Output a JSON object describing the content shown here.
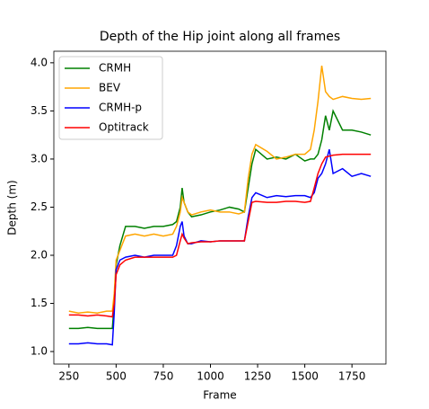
{
  "chart_data": {
    "type": "line",
    "title": "Depth of the Hip joint along all frames",
    "x_label": "Frame",
    "y_label": "Depth (m)",
    "x": [
      250,
      300,
      350,
      400,
      450,
      480,
      490,
      500,
      520,
      550,
      600,
      650,
      700,
      750,
      800,
      820,
      840,
      850,
      860,
      880,
      900,
      950,
      1000,
      1050,
      1100,
      1150,
      1180,
      1200,
      1220,
      1240,
      1300,
      1350,
      1400,
      1450,
      1500,
      1530,
      1550,
      1570,
      1590,
      1610,
      1630,
      1650,
      1700,
      1750,
      1800,
      1850
    ],
    "series": [
      {
        "name": "CRMH",
        "color": "#008000",
        "values": [
          1.24,
          1.24,
          1.25,
          1.24,
          1.24,
          1.24,
          1.5,
          1.9,
          2.1,
          2.3,
          2.3,
          2.28,
          2.3,
          2.3,
          2.32,
          2.35,
          2.5,
          2.7,
          2.55,
          2.45,
          2.4,
          2.42,
          2.45,
          2.47,
          2.5,
          2.48,
          2.45,
          2.7,
          2.95,
          3.1,
          3.0,
          3.02,
          3.0,
          3.05,
          2.98,
          3.0,
          3.0,
          3.05,
          3.2,
          3.45,
          3.3,
          3.5,
          3.3,
          3.3,
          3.28,
          3.25
        ]
      },
      {
        "name": "BEV",
        "color": "#ffa500",
        "values": [
          1.42,
          1.4,
          1.41,
          1.4,
          1.42,
          1.42,
          1.6,
          1.95,
          2.05,
          2.2,
          2.22,
          2.2,
          2.22,
          2.2,
          2.22,
          2.3,
          2.45,
          2.6,
          2.55,
          2.45,
          2.42,
          2.45,
          2.47,
          2.45,
          2.45,
          2.43,
          2.45,
          2.8,
          3.05,
          3.15,
          3.08,
          3.0,
          3.02,
          3.05,
          3.05,
          3.1,
          3.3,
          3.6,
          3.97,
          3.7,
          3.65,
          3.62,
          3.65,
          3.63,
          3.62,
          3.63
        ]
      },
      {
        "name": "CRMH-p",
        "color": "#0000ff",
        "values": [
          1.08,
          1.08,
          1.09,
          1.08,
          1.08,
          1.07,
          1.4,
          1.85,
          1.95,
          1.98,
          2.0,
          1.98,
          2.0,
          2.0,
          2.0,
          2.1,
          2.3,
          2.35,
          2.2,
          2.12,
          2.12,
          2.15,
          2.14,
          2.15,
          2.15,
          2.15,
          2.15,
          2.4,
          2.6,
          2.65,
          2.6,
          2.62,
          2.61,
          2.62,
          2.62,
          2.6,
          2.65,
          2.8,
          2.85,
          2.95,
          3.1,
          2.85,
          2.9,
          2.82,
          2.85,
          2.82
        ]
      },
      {
        "name": "Optitrack",
        "color": "#ff0000",
        "values": [
          1.38,
          1.38,
          1.37,
          1.38,
          1.37,
          1.36,
          1.5,
          1.8,
          1.9,
          1.95,
          1.98,
          1.98,
          1.98,
          1.98,
          1.98,
          2.0,
          2.15,
          2.22,
          2.18,
          2.12,
          2.13,
          2.14,
          2.14,
          2.15,
          2.15,
          2.15,
          2.15,
          2.35,
          2.55,
          2.56,
          2.55,
          2.55,
          2.56,
          2.56,
          2.55,
          2.56,
          2.7,
          2.85,
          2.95,
          3.02,
          3.03,
          3.04,
          3.05,
          3.05,
          3.05,
          3.05
        ]
      }
    ],
    "xlim": [
      170,
      1930
    ],
    "xticks": [
      250,
      500,
      750,
      1000,
      1250,
      1500,
      1750
    ],
    "ylim": [
      0.87,
      4.12
    ],
    "yticks": [
      {
        "value": 1,
        "label": "1.0"
      },
      1.5,
      {
        "value": 2,
        "label": "2.0"
      },
      2.5,
      {
        "value": 3,
        "label": "3.0"
      },
      3.5,
      {
        "value": 4,
        "label": "4.0"
      }
    ],
    "legend": "upper left",
    "grid": false
  }
}
